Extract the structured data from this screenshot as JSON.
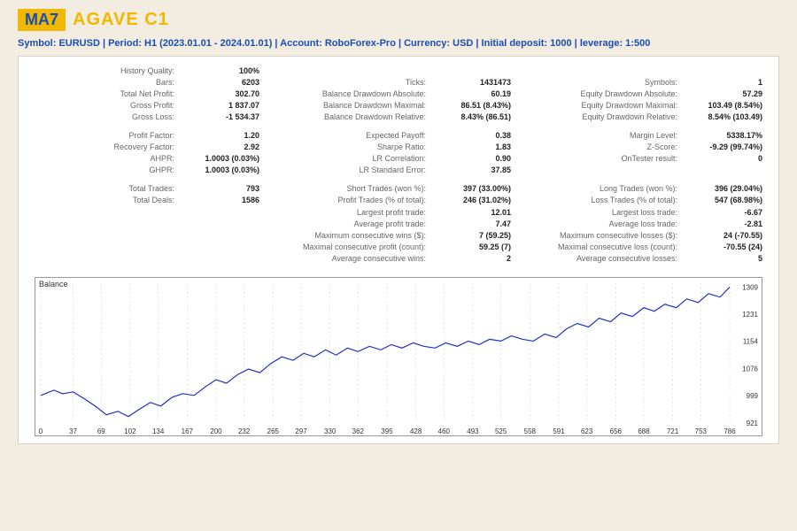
{
  "header": {
    "badge": "MA7",
    "title": "AGAVE C1",
    "subhead": "Symbol: EURUSD  |  Period: H1 (2023.01.01 - 2024.01.01)  |  Account: RoboForex-Pro  |  Currency: USD  |  Initial deposit: 1000  |  leverage: 1:500"
  },
  "col1": {
    "g1": [
      {
        "lbl": "History Quality:",
        "val": "100%"
      },
      {
        "lbl": "Bars:",
        "val": "6203"
      },
      {
        "lbl": "Total Net Profit:",
        "val": "302.70"
      },
      {
        "lbl": "Gross Profit:",
        "val": "1 837.07"
      },
      {
        "lbl": "Gross Loss:",
        "val": "-1 534.37"
      }
    ],
    "g2": [
      {
        "lbl": "Profit Factor:",
        "val": "1.20"
      },
      {
        "lbl": "Recovery Factor:",
        "val": "2.92"
      },
      {
        "lbl": "AHPR:",
        "val": "1.0003 (0.03%)"
      },
      {
        "lbl": "GHPR:",
        "val": "1.0003 (0.03%)"
      }
    ],
    "g3": [
      {
        "lbl": "Total Trades:",
        "val": "793"
      },
      {
        "lbl": "Total Deals:",
        "val": "1586"
      }
    ]
  },
  "col2": {
    "g1": [
      {
        "lbl": "Ticks:",
        "val": "1431473"
      },
      {
        "lbl": "Balance Drawdown Absolute:",
        "val": "60.19"
      },
      {
        "lbl": "Balance Drawdown Maximal:",
        "val": "86.51 (8.43%)"
      },
      {
        "lbl": "Balance Drawdown Relative:",
        "val": "8.43% (86.51)"
      }
    ],
    "g2": [
      {
        "lbl": "Expected Payoff:",
        "val": "0.38"
      },
      {
        "lbl": "Sharpe Ratio:",
        "val": "1.83"
      },
      {
        "lbl": "LR Correlation:",
        "val": "0.90"
      },
      {
        "lbl": "LR Standard Error:",
        "val": "37.85"
      }
    ],
    "g3": [
      {
        "lbl": "Short Trades (won %):",
        "val": "397 (33.00%)"
      },
      {
        "lbl": "Profit Trades (% of total):",
        "val": "246 (31.02%)"
      },
      {
        "lbl": "Largest profit trade:",
        "val": "12.01"
      },
      {
        "lbl": "Average profit trade:",
        "val": "7.47"
      },
      {
        "lbl": "Maximum consecutive wins ($):",
        "val": "7 (59.25)"
      },
      {
        "lbl": "Maximal consecutive profit (count):",
        "val": "59.25 (7)"
      },
      {
        "lbl": "Average consecutive wins:",
        "val": "2"
      }
    ]
  },
  "col3": {
    "g1": [
      {
        "lbl": "Symbols:",
        "val": "1"
      },
      {
        "lbl": "Equity Drawdown Absolute:",
        "val": "57.29"
      },
      {
        "lbl": "Equity Drawdown Maximal:",
        "val": "103.49 (8.54%)"
      },
      {
        "lbl": "Equity Drawdown Relative:",
        "val": "8.54% (103.49)"
      }
    ],
    "g2": [
      {
        "lbl": "Margin Level:",
        "val": "5338.17%"
      },
      {
        "lbl": "Z-Score:",
        "val": "-9.29 (99.74%)"
      },
      {
        "lbl": "OnTester result:",
        "val": "0"
      }
    ],
    "g3": [
      {
        "lbl": "Long Trades (won %):",
        "val": "396 (29.04%)"
      },
      {
        "lbl": "Loss Trades (% of total):",
        "val": "547 (68.98%)"
      },
      {
        "lbl": "Largest loss trade:",
        "val": "-6.67"
      },
      {
        "lbl": "Average loss trade:",
        "val": "-2.81"
      },
      {
        "lbl": "Maximum consecutive losses ($):",
        "val": "24 (-70.55)"
      },
      {
        "lbl": "Maximal consecutive loss (count):",
        "val": "-70.55 (24)"
      },
      {
        "lbl": "Average consecutive losses:",
        "val": "5"
      }
    ]
  },
  "chart": {
    "label": "Balance",
    "line_color": "#2030c0",
    "grid_color": "#c8c8c8",
    "background": "#ffffff",
    "xlim": [
      0,
      786
    ],
    "ylim": [
      921,
      1320
    ],
    "yticks": [
      921,
      999,
      1076,
      1154,
      1231,
      1309
    ],
    "xticks": [
      0,
      37,
      69,
      102,
      134,
      167,
      200,
      232,
      265,
      297,
      330,
      362,
      395,
      428,
      460,
      493,
      525,
      558,
      591,
      623,
      656,
      688,
      721,
      753,
      786
    ],
    "series": [
      [
        0,
        1000
      ],
      [
        15,
        1015
      ],
      [
        25,
        1005
      ],
      [
        37,
        1010
      ],
      [
        50,
        990
      ],
      [
        62,
        970
      ],
      [
        75,
        945
      ],
      [
        88,
        955
      ],
      [
        100,
        940
      ],
      [
        112,
        960
      ],
      [
        125,
        980
      ],
      [
        137,
        970
      ],
      [
        150,
        995
      ],
      [
        162,
        1005
      ],
      [
        175,
        1000
      ],
      [
        188,
        1025
      ],
      [
        200,
        1045
      ],
      [
        212,
        1035
      ],
      [
        225,
        1060
      ],
      [
        237,
        1075
      ],
      [
        250,
        1065
      ],
      [
        262,
        1090
      ],
      [
        275,
        1110
      ],
      [
        288,
        1100
      ],
      [
        300,
        1120
      ],
      [
        312,
        1110
      ],
      [
        325,
        1130
      ],
      [
        337,
        1115
      ],
      [
        350,
        1135
      ],
      [
        362,
        1125
      ],
      [
        375,
        1140
      ],
      [
        388,
        1130
      ],
      [
        400,
        1145
      ],
      [
        412,
        1135
      ],
      [
        425,
        1150
      ],
      [
        437,
        1140
      ],
      [
        450,
        1135
      ],
      [
        462,
        1150
      ],
      [
        475,
        1140
      ],
      [
        488,
        1155
      ],
      [
        500,
        1145
      ],
      [
        512,
        1160
      ],
      [
        525,
        1155
      ],
      [
        537,
        1170
      ],
      [
        550,
        1160
      ],
      [
        562,
        1155
      ],
      [
        575,
        1175
      ],
      [
        588,
        1165
      ],
      [
        600,
        1190
      ],
      [
        612,
        1205
      ],
      [
        625,
        1195
      ],
      [
        637,
        1220
      ],
      [
        650,
        1210
      ],
      [
        662,
        1235
      ],
      [
        675,
        1225
      ],
      [
        688,
        1250
      ],
      [
        700,
        1240
      ],
      [
        712,
        1260
      ],
      [
        725,
        1250
      ],
      [
        737,
        1275
      ],
      [
        750,
        1265
      ],
      [
        762,
        1290
      ],
      [
        775,
        1280
      ],
      [
        786,
        1309
      ]
    ]
  }
}
